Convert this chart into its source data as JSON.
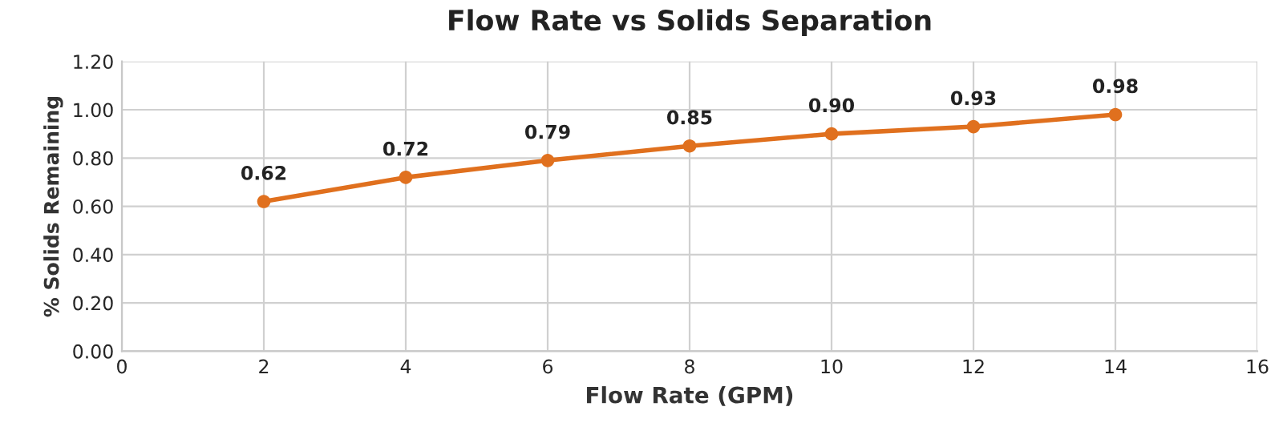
{
  "chart_data": {
    "type": "line",
    "title": "Flow Rate vs Solids Separation",
    "xlabel": "Flow Rate (GPM)",
    "ylabel": "% Solids Remaining",
    "x": [
      2,
      4,
      6,
      8,
      10,
      12,
      14
    ],
    "series": [
      {
        "color": "#e0701e",
        "values": [
          0.62,
          0.72,
          0.79,
          0.85,
          0.9,
          0.93,
          0.98
        ],
        "value_labels": [
          "0.62",
          "0.72",
          "0.79",
          "0.85",
          "0.90",
          "0.93",
          "0.98"
        ]
      }
    ],
    "xlim": [
      0,
      16
    ],
    "xticks": [
      0,
      2,
      4,
      6,
      8,
      10,
      12,
      14,
      16
    ],
    "ylim": [
      0,
      1.2
    ],
    "yticks": [
      {
        "value": 0,
        "label": "0.00"
      },
      {
        "value": 0.2,
        "label": "0.20"
      },
      {
        "value": 0.4,
        "label": "0.40"
      },
      {
        "value": 0.6,
        "label": "0.60"
      },
      {
        "value": 0.8,
        "label": "0.80"
      },
      {
        "value": 1.0,
        "label": "1.00"
      },
      {
        "value": 1.2,
        "label": "1.20"
      }
    ],
    "grid": true,
    "marker": "circle",
    "line_style": "solid"
  }
}
